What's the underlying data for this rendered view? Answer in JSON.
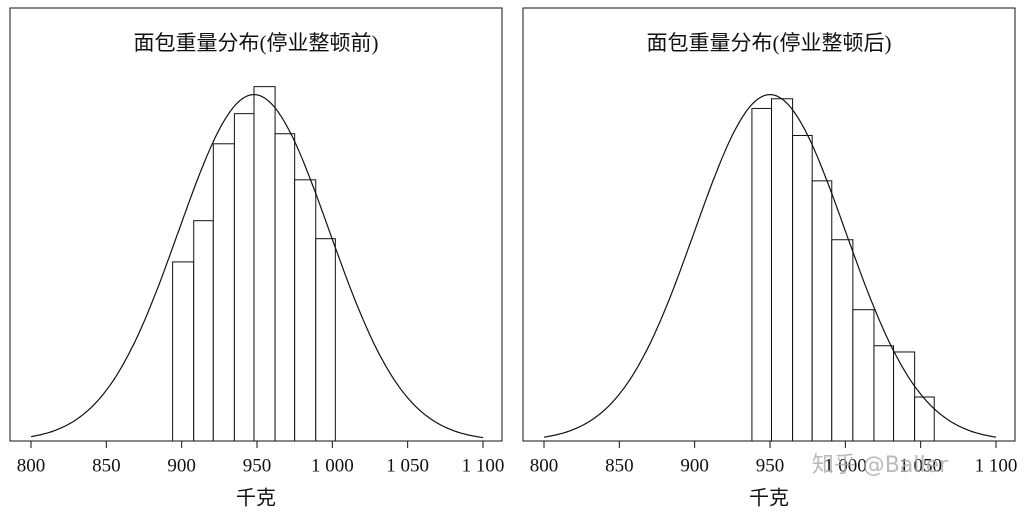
{
  "chart_data": [
    {
      "type": "histogram",
      "title": "面包重量分布(停业整顿前)",
      "x_label": "千克",
      "bins": [
        894,
        908,
        921,
        935,
        948,
        962,
        975,
        989,
        1002
      ],
      "values": [
        51.7,
        63.6,
        85.8,
        94.5,
        102.3,
        88.7,
        75.4,
        58.4
      ],
      "curve": {
        "mean": 948,
        "sd": 50,
        "peak": 100
      },
      "xlim": [
        800,
        1100
      ],
      "ylim": [
        0,
        125
      ],
      "xticks": [
        800,
        850,
        900,
        950,
        {
          "value": 1000,
          "label": "1 000"
        },
        {
          "value": 1050,
          "label": "1 050"
        },
        {
          "value": 1100,
          "label": "1 100"
        }
      ],
      "color": "#ffffff"
    },
    {
      "type": "histogram",
      "title": "面包重量分布(停业整顿后)",
      "x_label": "千克",
      "bins": [
        938,
        951,
        965,
        978,
        991,
        1005,
        1019,
        1032,
        1046,
        1059
      ],
      "values": [
        96.0,
        98.8,
        88.2,
        75.1,
        58.1,
        37.9,
        27.5,
        25.7,
        12.7
      ],
      "curve": {
        "mean": 950,
        "sd": 50,
        "peak": 100
      },
      "xlim": [
        800,
        1100
      ],
      "ylim": [
        0,
        125
      ],
      "xticks": [
        800,
        850,
        900,
        950,
        {
          "value": 1000,
          "label": "1 000"
        },
        {
          "value": 1050,
          "label": "1 050"
        },
        {
          "value": 1100,
          "label": "1 100"
        }
      ],
      "color": "#ffffff"
    }
  ],
  "watermark": "知乎 @Baller"
}
